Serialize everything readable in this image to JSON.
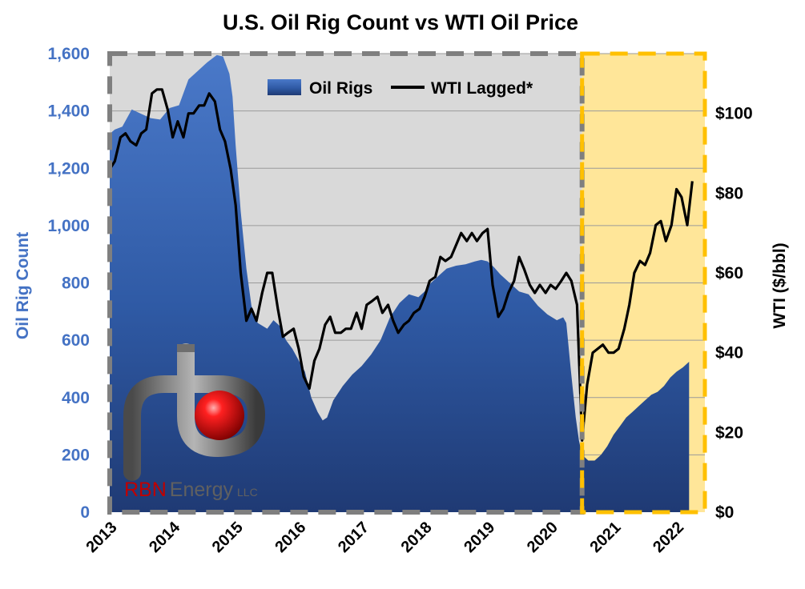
{
  "chart_data": {
    "type": "area+line",
    "title": "U.S. Oil Rig Count vs WTI Oil Price",
    "ylabel_left": "Oil Rig Count",
    "ylabel_right": "WTI ($/bbl)",
    "ylim_left": [
      0,
      1600
    ],
    "ylim_right": [
      0,
      115
    ],
    "xlim": [
      2013,
      2022.45
    ],
    "yticks_left": [
      "0",
      "200",
      "400",
      "600",
      "800",
      "1,000",
      "1,200",
      "1,400",
      "1,600"
    ],
    "yticks_right": [
      "$0",
      "$20",
      "$40",
      "$60",
      "$80",
      "$100"
    ],
    "xticks": [
      "2013",
      "2014",
      "2015",
      "2016",
      "2017",
      "2018",
      "2019",
      "2020",
      "2021",
      "2022"
    ],
    "legend_position": "top-center",
    "highlight_start": 2020.5,
    "colors": {
      "rigs": "#2e5597",
      "wti": "#000000",
      "left_axis": "#4472c4",
      "pre_region": "#d9d9d9",
      "post_region": "#ffe699",
      "post_border": "#ffc000",
      "pre_border": "#7f7f7f"
    },
    "series": [
      {
        "name": "Oil Rigs",
        "axis": "left",
        "type": "area",
        "x": [
          2013.0,
          2013.08,
          2013.2,
          2013.35,
          2013.5,
          2013.65,
          2013.8,
          2013.95,
          2014.1,
          2014.25,
          2014.4,
          2014.55,
          2014.7,
          2014.8,
          2014.9,
          2014.95,
          2015.0,
          2015.08,
          2015.17,
          2015.25,
          2015.35,
          2015.5,
          2015.6,
          2015.7,
          2015.8,
          2015.9,
          2016.0,
          2016.1,
          2016.2,
          2016.3,
          2016.38,
          2016.45,
          2016.55,
          2016.7,
          2016.85,
          2017.0,
          2017.15,
          2017.3,
          2017.45,
          2017.6,
          2017.75,
          2017.9,
          2018.0,
          2018.1,
          2018.2,
          2018.35,
          2018.5,
          2018.65,
          2018.8,
          2018.9,
          2019.0,
          2019.1,
          2019.2,
          2019.35,
          2019.5,
          2019.65,
          2019.8,
          2019.95,
          2020.1,
          2020.2,
          2020.25,
          2020.32,
          2020.4,
          2020.45,
          2020.5,
          2020.6,
          2020.7,
          2020.8,
          2020.9,
          2021.0,
          2021.1,
          2021.2,
          2021.3,
          2021.4,
          2021.5,
          2021.6,
          2021.7,
          2021.8,
          2021.9,
          2022.0,
          2022.1,
          2022.2
        ],
        "values": [
          1320,
          1335,
          1345,
          1405,
          1390,
          1375,
          1370,
          1410,
          1420,
          1510,
          1540,
          1570,
          1595,
          1590,
          1530,
          1450,
          1280,
          1050,
          850,
          720,
          660,
          640,
          670,
          650,
          600,
          570,
          530,
          490,
          400,
          350,
          320,
          330,
          390,
          440,
          480,
          510,
          550,
          600,
          680,
          730,
          760,
          750,
          770,
          800,
          820,
          850,
          860,
          865,
          875,
          880,
          875,
          855,
          830,
          800,
          770,
          760,
          720,
          690,
          670,
          680,
          660,
          500,
          330,
          250,
          200,
          180,
          180,
          200,
          230,
          270,
          300,
          330,
          350,
          370,
          390,
          410,
          420,
          440,
          470,
          490,
          505,
          525
        ]
      },
      {
        "name": "WTI Lagged*",
        "axis": "right",
        "type": "line",
        "x": [
          2013.0,
          2013.08,
          2013.17,
          2013.25,
          2013.33,
          2013.42,
          2013.5,
          2013.58,
          2013.67,
          2013.75,
          2013.83,
          2013.92,
          2014.0,
          2014.08,
          2014.17,
          2014.25,
          2014.33,
          2014.42,
          2014.5,
          2014.58,
          2014.67,
          2014.75,
          2014.83,
          2014.92,
          2015.0,
          2015.08,
          2015.17,
          2015.25,
          2015.33,
          2015.42,
          2015.5,
          2015.58,
          2015.67,
          2015.75,
          2015.83,
          2015.92,
          2016.0,
          2016.08,
          2016.17,
          2016.25,
          2016.33,
          2016.42,
          2016.5,
          2016.58,
          2016.67,
          2016.75,
          2016.83,
          2016.92,
          2017.0,
          2017.08,
          2017.17,
          2017.25,
          2017.33,
          2017.42,
          2017.5,
          2017.58,
          2017.67,
          2017.75,
          2017.83,
          2017.92,
          2018.0,
          2018.08,
          2018.17,
          2018.25,
          2018.33,
          2018.42,
          2018.5,
          2018.58,
          2018.67,
          2018.75,
          2018.83,
          2018.92,
          2019.0,
          2019.08,
          2019.17,
          2019.25,
          2019.33,
          2019.42,
          2019.5,
          2019.58,
          2019.67,
          2019.75,
          2019.83,
          2019.92,
          2020.0,
          2020.08,
          2020.17,
          2020.25,
          2020.33,
          2020.42,
          2020.5,
          2020.58,
          2020.67,
          2020.75,
          2020.83,
          2020.92,
          2021.0,
          2021.08,
          2021.17,
          2021.25,
          2021.33,
          2021.42,
          2021.5,
          2021.58,
          2021.67,
          2021.75,
          2021.83,
          2021.92,
          2022.0,
          2022.08,
          2022.17,
          2022.25
        ],
        "values": [
          86,
          88,
          94,
          95,
          93,
          92,
          95,
          96,
          105,
          106,
          106,
          101,
          94,
          98,
          94,
          100,
          100,
          102,
          102,
          105,
          103,
          96,
          93,
          86,
          77,
          60,
          48,
          51,
          48,
          55,
          60,
          60,
          51,
          44,
          45,
          46,
          41,
          34,
          31,
          38,
          41,
          47,
          49,
          45,
          45,
          46,
          46,
          50,
          46,
          52,
          53,
          54,
          50,
          52,
          48,
          45,
          47,
          48,
          50,
          51,
          54,
          58,
          59,
          64,
          63,
          64,
          67,
          70,
          68,
          70,
          68,
          70,
          71,
          57,
          49,
          51,
          55,
          58,
          64,
          61,
          57,
          55,
          57,
          55,
          57,
          56,
          58,
          60,
          58,
          52,
          18,
          32,
          40,
          41,
          42,
          40,
          40,
          41,
          46,
          52,
          60,
          63,
          62,
          65,
          72,
          73,
          68,
          72,
          81,
          79,
          72,
          83
        ]
      }
    ]
  },
  "logo": {
    "text_rbn": "RBN",
    "text_energy": "Energy",
    "text_llc": "LLC"
  }
}
